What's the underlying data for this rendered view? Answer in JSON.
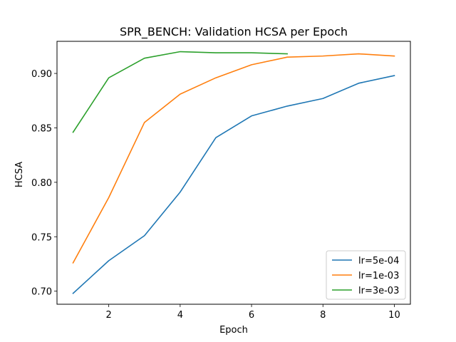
{
  "chart_data": {
    "type": "line",
    "title": "SPR_BENCH: Validation HCSA per Epoch",
    "xlabel": "Epoch",
    "ylabel": "HCSA",
    "xlim": [
      0.55,
      10.45
    ],
    "ylim": [
      0.688,
      0.9295
    ],
    "xticks": [
      2,
      4,
      6,
      8,
      10
    ],
    "yticks": [
      0.7,
      0.75,
      0.8,
      0.85,
      0.9
    ],
    "ytick_labels": [
      "0.70",
      "0.75",
      "0.80",
      "0.85",
      "0.90"
    ],
    "grid": false,
    "legend_position": "lower-right",
    "series": [
      {
        "name": "lr=5e-04",
        "color": "#1f77b4",
        "x": [
          1,
          2,
          3,
          4,
          5,
          6,
          7,
          8,
          9,
          10
        ],
        "y": [
          0.698,
          0.728,
          0.751,
          0.791,
          0.841,
          0.861,
          0.87,
          0.877,
          0.891,
          0.898
        ]
      },
      {
        "name": "lr=1e-03",
        "color": "#ff7f0e",
        "x": [
          1,
          2,
          3,
          4,
          5,
          6,
          7,
          8,
          9,
          10
        ],
        "y": [
          0.726,
          0.786,
          0.855,
          0.881,
          0.896,
          0.908,
          0.915,
          0.916,
          0.918,
          0.916
        ]
      },
      {
        "name": "lr=3e-03",
        "color": "#2ca02c",
        "x": [
          1,
          2,
          3,
          4,
          5,
          6,
          7
        ],
        "y": [
          0.846,
          0.896,
          0.914,
          0.92,
          0.919,
          0.919,
          0.918
        ]
      }
    ]
  }
}
